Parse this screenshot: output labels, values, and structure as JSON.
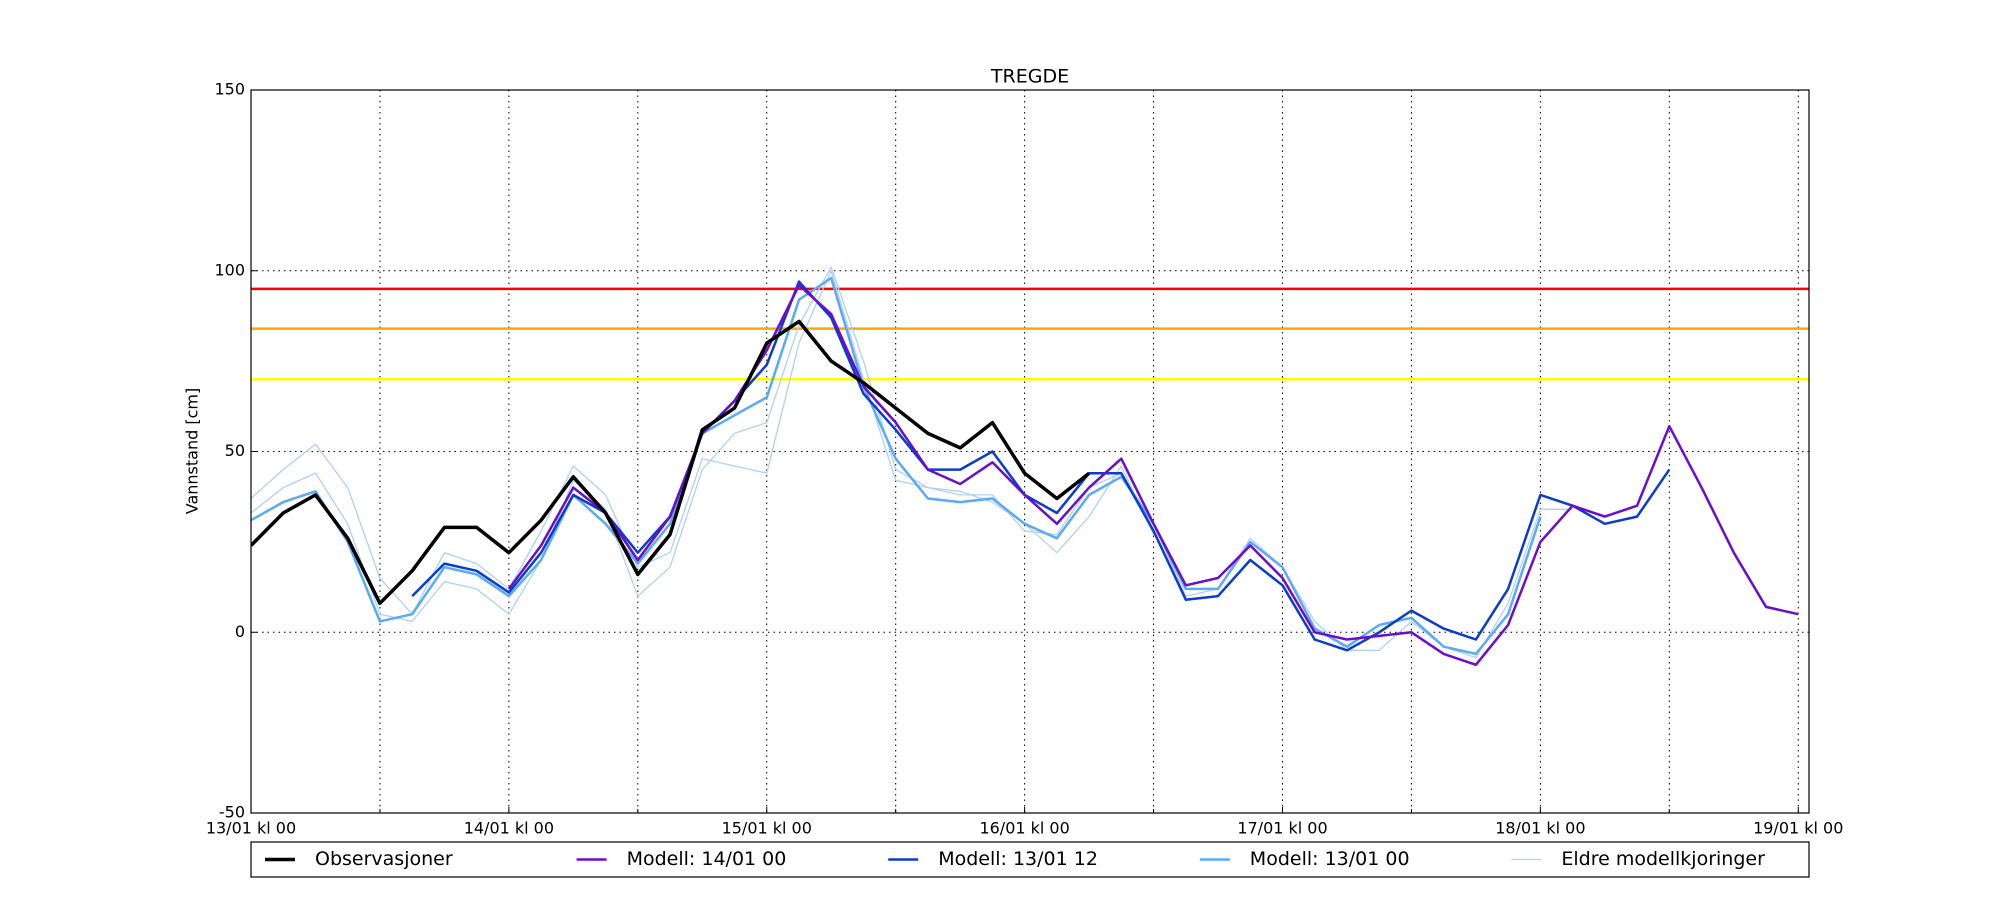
{
  "chart_data": {
    "type": "line",
    "title": "TREGDE",
    "y_label": "Vannstand [cm]",
    "x": [
      "13/01 kl 00",
      "13/01 kl 03",
      "13/01 kl 06",
      "13/01 kl 09",
      "13/01 kl 12",
      "13/01 kl 15",
      "13/01 kl 18",
      "13/01 kl 21",
      "14/01 kl 00",
      "14/01 kl 03",
      "14/01 kl 06",
      "14/01 kl 09",
      "14/01 kl 12",
      "14/01 kl 15",
      "14/01 kl 18",
      "14/01 kl 21",
      "15/01 kl 00",
      "15/01 kl 03",
      "15/01 kl 06",
      "15/01 kl 09",
      "15/01 kl 12",
      "15/01 kl 15",
      "15/01 kl 18",
      "15/01 kl 21",
      "16/01 kl 00",
      "16/01 kl 03",
      "16/01 kl 06",
      "16/01 kl 09",
      "16/01 kl 12",
      "16/01 kl 15",
      "16/01 kl 18",
      "16/01 kl 21",
      "17/01 kl 00",
      "17/01 kl 03",
      "17/01 kl 06",
      "17/01 kl 09",
      "17/01 kl 12",
      "17/01 kl 15",
      "17/01 kl 18",
      "17/01 kl 21",
      "18/01 kl 00",
      "18/01 kl 03",
      "18/01 kl 06",
      "18/01 kl 09",
      "18/01 kl 12",
      "18/01 kl 15",
      "18/01 kl 18",
      "18/01 kl 21",
      "19/01 kl 00"
    ],
    "xlim": [
      "13/01 kl 00",
      "19/01 kl 01"
    ],
    "xticks": [
      "13/01 kl 00",
      "14/01 kl 00",
      "15/01 kl 00",
      "16/01 kl 00",
      "17/01 kl 00",
      "18/01 kl 00",
      "19/01 kl 00"
    ],
    "ylim": [
      -50,
      150
    ],
    "yticks": [
      -50,
      0,
      50,
      100,
      150
    ],
    "grid": true,
    "hlines": [
      {
        "value": 95,
        "color": "#ff0000"
      },
      {
        "value": 84,
        "color": "#ffa500"
      },
      {
        "value": 70,
        "color": "#ffff00"
      }
    ],
    "series": [
      {
        "name": "Observasjoner",
        "color": "#000000",
        "width": 3.5,
        "values": [
          24,
          33,
          38,
          26,
          8,
          17,
          29,
          29,
          22,
          31,
          43,
          33,
          16,
          27,
          56,
          62,
          80,
          86,
          75,
          69,
          62,
          55,
          51,
          58,
          44,
          37,
          44,
          null,
          null,
          null,
          null,
          null,
          null,
          null,
          null,
          null,
          null,
          null,
          null,
          null,
          null,
          null,
          null,
          null,
          null,
          null,
          null,
          null,
          null
        ]
      },
      {
        "name": "Modell: 14/01 00",
        "color": "#6a0dce",
        "width": 2.5,
        "values": [
          null,
          null,
          null,
          null,
          null,
          null,
          null,
          null,
          12,
          24,
          40,
          33,
          20,
          32,
          55,
          64,
          78,
          96,
          88,
          68,
          58,
          45,
          41,
          47,
          38,
          30,
          40,
          48,
          30,
          13,
          15,
          24,
          15,
          0,
          -2,
          -1,
          0,
          -6,
          -9,
          2,
          25,
          35,
          32,
          35,
          57,
          40,
          22,
          7,
          5
        ]
      },
      {
        "name": "Modell: 13/01 12",
        "color": "#0a3ccf",
        "width": 2.5,
        "values": [
          null,
          null,
          null,
          null,
          null,
          10,
          19,
          17,
          11,
          22,
          38,
          33,
          22,
          32,
          55,
          64,
          74,
          97,
          87,
          66,
          56,
          45,
          45,
          50,
          38,
          33,
          44,
          44,
          28,
          9,
          10,
          20,
          13,
          -2,
          -5,
          0,
          6,
          1,
          -2,
          12,
          38,
          35,
          30,
          32,
          45,
          null,
          null,
          null,
          null
        ]
      },
      {
        "name": "Modell: 13/01 00",
        "color": "#5aaaf5",
        "width": 2.5,
        "values": [
          31,
          36,
          39,
          25,
          3,
          5,
          18,
          16,
          10,
          20,
          38,
          30,
          19,
          30,
          55,
          60,
          65,
          92,
          98,
          68,
          48,
          37,
          36,
          37,
          30,
          26,
          38,
          43,
          30,
          12,
          12,
          25,
          18,
          1,
          -4,
          2,
          4,
          -4,
          -6,
          5,
          32,
          null,
          null,
          null,
          null,
          null,
          null,
          null,
          null
        ]
      },
      {
        "name": "Eldre modellkjoringer",
        "color": "#b0d0f5",
        "width": 1.3,
        "values": [
          [
            37,
            45,
            52,
            40,
            15,
            5,
            22,
            19,
            12,
            28,
            46,
            38,
            18,
            22,
            48,
            46,
            44,
            80,
            100,
            70,
            42,
            40,
            39,
            36,
            30,
            22,
            32,
            46,
            27,
            null,
            null,
            null,
            null,
            null,
            null,
            null,
            null,
            null,
            null,
            null,
            null,
            null,
            null,
            null,
            null,
            null,
            null,
            null,
            null
          ],
          [
            33,
            40,
            44,
            30,
            5,
            3,
            14,
            12,
            5,
            20,
            42,
            34,
            10,
            18,
            45,
            55,
            58,
            85,
            101,
            75,
            45,
            40,
            38,
            38,
            28,
            27,
            40,
            44,
            30,
            10,
            12,
            26,
            18,
            3,
            -5,
            -5,
            3,
            -4,
            -7,
            8,
            34,
            34,
            null,
            null,
            null,
            null,
            null,
            null,
            null
          ]
        ]
      }
    ]
  }
}
